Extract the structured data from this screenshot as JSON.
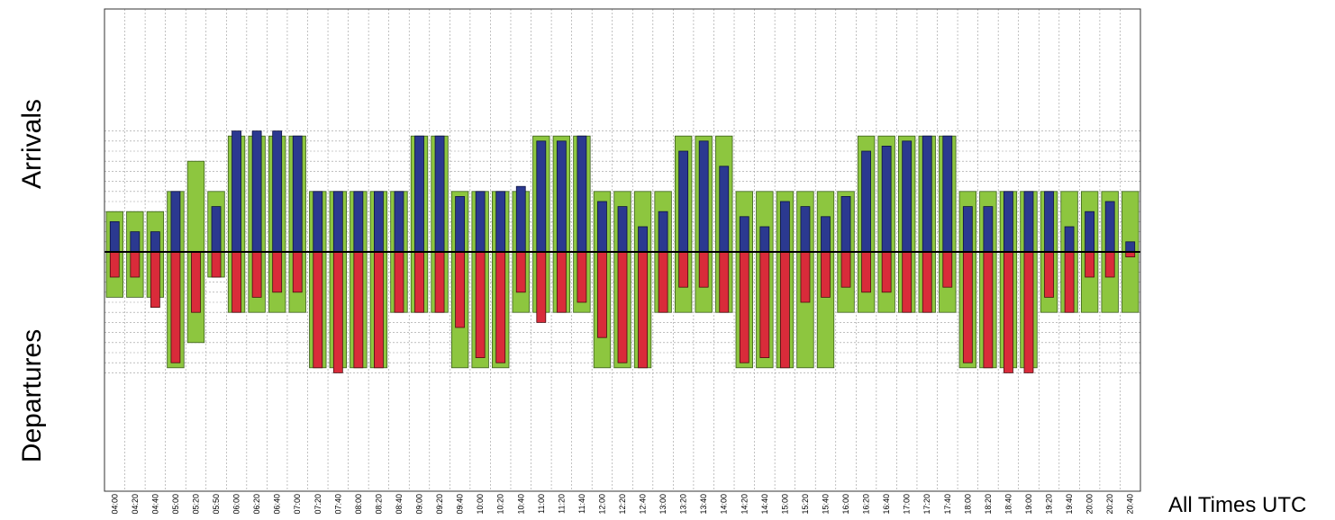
{
  "chart_data": {
    "type": "bar",
    "title": "",
    "ylabel_top": "Arrivals",
    "ylabel_bottom": "Departures",
    "xlabel": "All Times UTC",
    "grid": true,
    "colors": {
      "capacity": "#8dc63f",
      "arrivals": "#2b3990",
      "departures": "#d92b3a",
      "grid": "#9a9a9a",
      "axis": "#000000"
    },
    "categories": [
      "04:00",
      "04:20",
      "04:40",
      "05:00",
      "05:20",
      "05:50",
      "06:00",
      "06:20",
      "06:40",
      "07:00",
      "07:20",
      "07:40",
      "08:00",
      "08:20",
      "08:40",
      "09:00",
      "09:20",
      "09:40",
      "10:00",
      "10:20",
      "10:40",
      "11:00",
      "11:20",
      "11:40",
      "12:00",
      "12:20",
      "12:40",
      "13:00",
      "13:20",
      "13:40",
      "14:00",
      "14:20",
      "14:40",
      "15:00",
      "15:20",
      "15:40",
      "16:00",
      "16:20",
      "16:40",
      "17:00",
      "17:20",
      "17:40",
      "18:00",
      "18:20",
      "18:40",
      "19:00",
      "19:20",
      "19:40",
      "20:00",
      "20:20",
      "20:40"
    ],
    "ylim": [
      -12,
      12
    ],
    "series": [
      {
        "role": "arrival_capacity",
        "values": [
          4,
          4,
          4,
          6,
          9,
          6,
          11.5,
          11.5,
          11.5,
          11.5,
          6,
          6,
          6,
          6,
          6,
          11.5,
          11.5,
          6,
          6,
          6,
          6,
          11.5,
          11.5,
          11.5,
          6,
          6,
          6,
          6,
          11.5,
          11.5,
          11.5,
          6,
          6,
          6,
          6,
          6,
          6,
          11.5,
          11.5,
          11.5,
          11.5,
          11.5,
          6,
          6,
          6,
          6,
          6,
          6,
          6,
          6,
          6
        ]
      },
      {
        "role": "arrivals",
        "values": [
          3,
          2,
          2,
          6,
          null,
          4.5,
          12,
          12,
          12,
          11.5,
          6,
          6,
          6,
          6,
          6,
          11.5,
          11.5,
          5.5,
          6,
          6,
          6.5,
          11,
          11,
          11.5,
          5,
          4.5,
          2.5,
          4,
          10,
          11,
          8.5,
          3.5,
          2.5,
          5,
          4.5,
          3.5,
          5.5,
          10,
          10.5,
          11,
          11.5,
          11.5,
          4.5,
          4.5,
          6,
          6,
          6,
          2.5,
          4,
          5,
          1
        ]
      },
      {
        "role": "departure_capacity",
        "values": [
          -4.5,
          -4.5,
          -4.5,
          -11.5,
          -9,
          -2.5,
          -6,
          -6,
          -6,
          -6,
          -11.5,
          -11.5,
          -11.5,
          -11.5,
          -6,
          -6,
          -6,
          -11.5,
          -11.5,
          -11.5,
          -6,
          -6,
          -6,
          -6,
          -11.5,
          -11.5,
          -11.5,
          -6,
          -6,
          -6,
          -6,
          -11.5,
          -11.5,
          -11.5,
          -11.5,
          -11.5,
          -6,
          -6,
          -6,
          -6,
          -6,
          -6,
          -11.5,
          -11.5,
          -11.5,
          -11.5,
          -6,
          -6,
          -6,
          -6,
          -6
        ]
      },
      {
        "role": "departures",
        "values": [
          -2.5,
          -2.5,
          -5.5,
          -11,
          -6,
          -2.5,
          -6,
          -4.5,
          -4,
          -4,
          -11.5,
          -12,
          -11.5,
          -11.5,
          -6,
          -6,
          -6,
          -7.5,
          -10.5,
          -11,
          -4,
          -7,
          -6,
          -5,
          -8.5,
          -11,
          -11.5,
          -6,
          -3.5,
          -3.5,
          -6,
          -11,
          -10.5,
          -11.5,
          -5,
          -4.5,
          -3.5,
          -4,
          -4,
          -6,
          -6,
          -3.5,
          -11,
          -11.5,
          -12,
          -12,
          -4.5,
          -6,
          -2.5,
          -2.5,
          -0.5
        ]
      }
    ]
  }
}
